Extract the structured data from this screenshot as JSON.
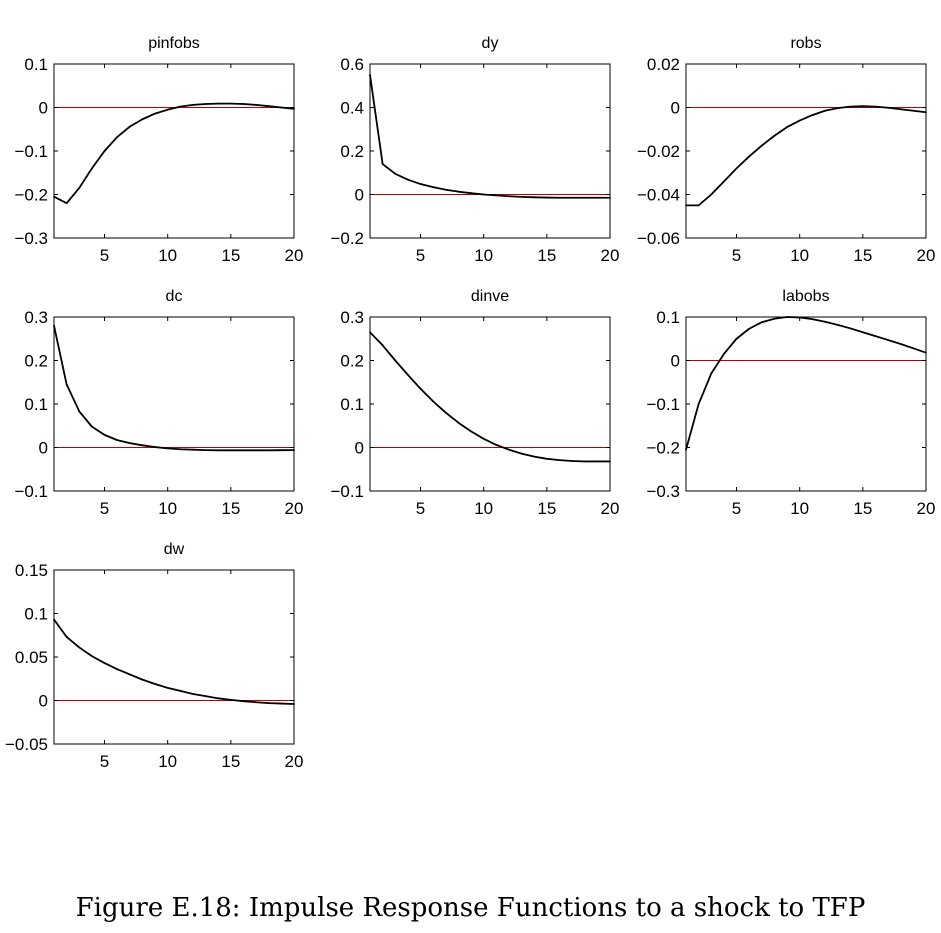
{
  "figure": {
    "caption": "Figure E.18: Impulse Response Functions to a shock to TFP"
  },
  "chart_data": [
    {
      "type": "line",
      "title": "pinfobs",
      "xlim": [
        1,
        20
      ],
      "ylim": [
        -0.3,
        0.1
      ],
      "xticks": [
        "5",
        "10",
        "15",
        "20"
      ],
      "yticks": [
        "0.1",
        "0",
        "−0.1",
        "−0.2",
        "−0.3"
      ],
      "x": [
        1,
        2,
        3,
        4,
        5,
        6,
        7,
        8,
        9,
        10,
        11,
        12,
        13,
        14,
        15,
        16,
        17,
        18,
        19,
        20
      ],
      "values": [
        -0.205,
        -0.22,
        -0.185,
        -0.14,
        -0.1,
        -0.068,
        -0.044,
        -0.027,
        -0.014,
        -0.005,
        0.002,
        0.006,
        0.008,
        0.009,
        0.009,
        0.008,
        0.006,
        0.003,
        0.0,
        -0.003
      ],
      "zero_line": 0,
      "zero_line_color": "#c00000",
      "line_color": "#000000"
    },
    {
      "type": "line",
      "title": "dy",
      "xlim": [
        1,
        20
      ],
      "ylim": [
        -0.2,
        0.6
      ],
      "xticks": [
        "5",
        "10",
        "15",
        "20"
      ],
      "yticks": [
        "0.6",
        "0.4",
        "0.2",
        "0",
        "−0.2"
      ],
      "x": [
        1,
        2,
        3,
        4,
        5,
        6,
        7,
        8,
        9,
        10,
        11,
        12,
        13,
        14,
        15,
        16,
        17,
        18,
        19,
        20
      ],
      "values": [
        0.55,
        0.14,
        0.095,
        0.068,
        0.048,
        0.034,
        0.022,
        0.013,
        0.006,
        0.0,
        -0.004,
        -0.008,
        -0.011,
        -0.013,
        -0.014,
        -0.015,
        -0.015,
        -0.015,
        -0.015,
        -0.015
      ],
      "zero_line": 0,
      "zero_line_color": "#c00000",
      "line_color": "#000000"
    },
    {
      "type": "line",
      "title": "robs",
      "xlim": [
        1,
        20
      ],
      "ylim": [
        -0.06,
        0.02
      ],
      "xticks": [
        "5",
        "10",
        "15",
        "20"
      ],
      "yticks": [
        "0.02",
        "0",
        "−0.02",
        "−0.04",
        "−0.06"
      ],
      "x": [
        1,
        2,
        3,
        4,
        5,
        6,
        7,
        8,
        9,
        10,
        11,
        12,
        13,
        14,
        15,
        16,
        17,
        18,
        19,
        20
      ],
      "values": [
        -0.045,
        -0.045,
        -0.04,
        -0.034,
        -0.028,
        -0.0225,
        -0.0175,
        -0.013,
        -0.009,
        -0.006,
        -0.0035,
        -0.0015,
        -0.0003,
        0.0004,
        0.0006,
        0.0004,
        -0.0001,
        -0.0008,
        -0.0015,
        -0.0022
      ],
      "zero_line": 0,
      "zero_line_color": "#c00000",
      "line_color": "#000000"
    },
    {
      "type": "line",
      "title": "dc",
      "xlim": [
        1,
        20
      ],
      "ylim": [
        -0.1,
        0.3
      ],
      "xticks": [
        "5",
        "10",
        "15",
        "20"
      ],
      "yticks": [
        "0.3",
        "0.2",
        "0.1",
        "0",
        "−0.1"
      ],
      "x": [
        1,
        2,
        3,
        4,
        5,
        6,
        7,
        8,
        9,
        10,
        11,
        12,
        13,
        14,
        15,
        16,
        17,
        18,
        19,
        20
      ],
      "values": [
        0.28,
        0.145,
        0.083,
        0.048,
        0.029,
        0.017,
        0.01,
        0.005,
        0.001,
        -0.002,
        -0.004,
        -0.005,
        -0.006,
        -0.0065,
        -0.0065,
        -0.0065,
        -0.0065,
        -0.0065,
        -0.0062,
        -0.006
      ],
      "zero_line": 0,
      "zero_line_color": "#c00000",
      "line_color": "#000000"
    },
    {
      "type": "line",
      "title": "dinve",
      "xlim": [
        1,
        20
      ],
      "ylim": [
        -0.1,
        0.3
      ],
      "xticks": [
        "5",
        "10",
        "15",
        "20"
      ],
      "yticks": [
        "0.3",
        "0.2",
        "0.1",
        "0",
        "−0.1"
      ],
      "x": [
        1,
        2,
        3,
        4,
        5,
        6,
        7,
        8,
        9,
        10,
        11,
        12,
        13,
        14,
        15,
        16,
        17,
        18,
        19,
        20
      ],
      "values": [
        0.265,
        0.235,
        0.2,
        0.167,
        0.135,
        0.106,
        0.08,
        0.057,
        0.037,
        0.02,
        0.006,
        -0.005,
        -0.014,
        -0.021,
        -0.026,
        -0.029,
        -0.031,
        -0.032,
        -0.032,
        -0.032
      ],
      "zero_line": 0,
      "zero_line_color": "#c00000",
      "line_color": "#000000"
    },
    {
      "type": "line",
      "title": "labobs",
      "xlim": [
        1,
        20
      ],
      "ylim": [
        -0.3,
        0.1
      ],
      "xticks": [
        "5",
        "10",
        "15",
        "20"
      ],
      "yticks": [
        "0.1",
        "0",
        "−0.1",
        "−0.2",
        "−0.3"
      ],
      "x": [
        1,
        2,
        3,
        4,
        5,
        6,
        7,
        8,
        9,
        10,
        11,
        12,
        13,
        14,
        15,
        16,
        17,
        18,
        19,
        20
      ],
      "values": [
        -0.205,
        -0.1,
        -0.03,
        0.015,
        0.05,
        0.073,
        0.088,
        0.096,
        0.1,
        0.099,
        0.095,
        0.089,
        0.082,
        0.074,
        0.065,
        0.056,
        0.047,
        0.038,
        0.028,
        0.018
      ],
      "zero_line": 0,
      "zero_line_color": "#c00000",
      "line_color": "#000000"
    },
    {
      "type": "line",
      "title": "dw",
      "xlim": [
        1,
        20
      ],
      "ylim": [
        -0.05,
        0.15
      ],
      "xticks": [
        "5",
        "10",
        "15",
        "20"
      ],
      "yticks": [
        "0.15",
        "0.1",
        "0.05",
        "0",
        "−0.05"
      ],
      "x": [
        1,
        2,
        3,
        4,
        5,
        6,
        7,
        8,
        9,
        10,
        11,
        12,
        13,
        14,
        15,
        16,
        17,
        18,
        19,
        20
      ],
      "values": [
        0.093,
        0.073,
        0.061,
        0.051,
        0.043,
        0.036,
        0.03,
        0.024,
        0.019,
        0.0145,
        0.011,
        0.0075,
        0.005,
        0.0025,
        0.0007,
        -0.0008,
        -0.002,
        -0.003,
        -0.0035,
        -0.004
      ],
      "zero_line": 0,
      "zero_line_color": "#c00000",
      "line_color": "#000000"
    }
  ]
}
